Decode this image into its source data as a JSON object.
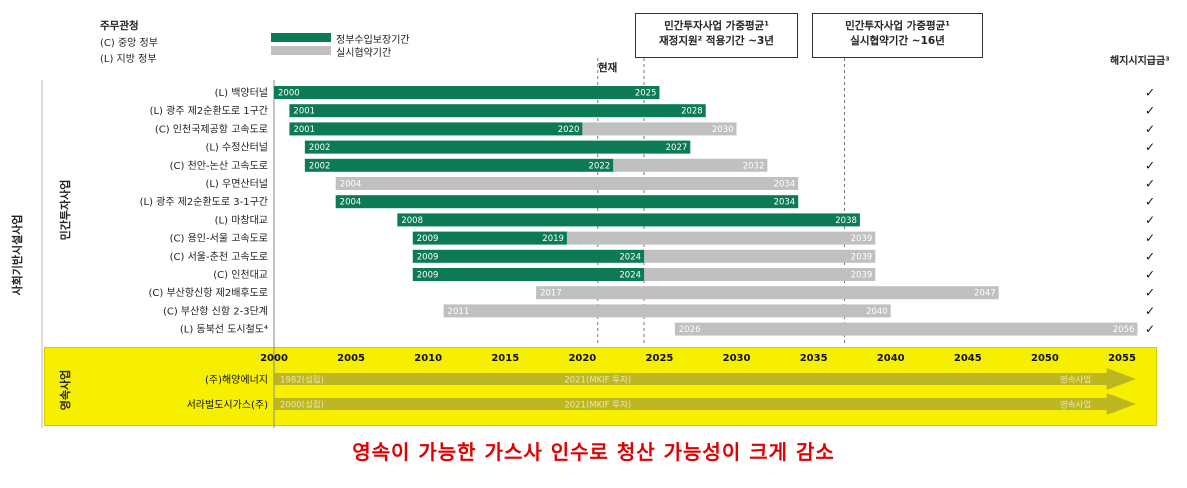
{
  "legend_ministry": {
    "title": "주무관청",
    "central": "(C) 중앙 정부",
    "local": "(L) 지방 정부"
  },
  "legend_series": {
    "guarantee": "정부수입보장기간",
    "actual": "실시협약기간",
    "guarantee_color": "#0b7a55",
    "actual_color": "#c0c0c0"
  },
  "callouts": {
    "box1_line1": "민간투자사업 가중평균¹",
    "box1_line2": "재정지원² 적용기간 ~3년",
    "box2_line1": "민간투자사업 가중평균¹",
    "box2_line2": "실시협약기간 ~16년",
    "now_label": "현재",
    "termination_label": "해지시지급금³"
  },
  "left_labels": {
    "outer": "사회기반시설사업",
    "private": "민간투자사업",
    "perpetual": "영속사업"
  },
  "subtitle": "영속이 가능한 가스사 인수로 청산 가능성이 크게 감소",
  "chart_data": {
    "type": "gantt",
    "x_range": [
      1989,
      2056
    ],
    "x_ticks": [
      2000,
      2005,
      2010,
      2015,
      2020,
      2025,
      2030,
      2035,
      2040,
      2045,
      2050,
      2055
    ],
    "reference_lines": [
      2021,
      2024,
      2037
    ],
    "projects": [
      {
        "name": "(L) 백양터널",
        "start": 2000,
        "guarantee_end": 2025,
        "end": 2025,
        "start_label": "2000",
        "mid_label": "",
        "end_label": "2025",
        "check": "✓"
      },
      {
        "name": "(L) 광주 제2순환도로 1구간",
        "start": 2001,
        "guarantee_end": 2028,
        "end": 2028,
        "start_label": "2001",
        "mid_label": "",
        "end_label": "2028",
        "check": "✓"
      },
      {
        "name": "(C) 인천국제공항 고속도로",
        "start": 2001,
        "guarantee_end": 2020,
        "end": 2030,
        "start_label": "2001",
        "mid_label": "2020",
        "end_label": "2030",
        "check": "✓"
      },
      {
        "name": "(L) 수정산터널",
        "start": 2002,
        "guarantee_end": 2027,
        "end": 2027,
        "start_label": "2002",
        "mid_label": "",
        "end_label": "2027",
        "check": "✓"
      },
      {
        "name": "(C) 천안-논산 고속도로",
        "start": 2002,
        "guarantee_end": 2022,
        "end": 2032,
        "start_label": "2002",
        "mid_label": "2022",
        "end_label": "2032",
        "check": "✓"
      },
      {
        "name": "(L) 우면산터널",
        "start": 2004,
        "guarantee_end": 2004,
        "end": 2034,
        "start_label": "2004",
        "mid_label": "",
        "end_label": "2034",
        "check": "✓"
      },
      {
        "name": "(L) 광주 제2순환도로 3-1구간",
        "start": 2004,
        "guarantee_end": 2034,
        "end": 2034,
        "start_label": "2004",
        "mid_label": "",
        "end_label": "2034",
        "check": "✓"
      },
      {
        "name": "(L) 마창대교",
        "start": 2008,
        "guarantee_end": 2038,
        "end": 2038,
        "start_label": "2008",
        "mid_label": "",
        "end_label": "2038",
        "check": "✓"
      },
      {
        "name": "(C) 용인-서울 고속도로",
        "start": 2009,
        "guarantee_end": 2019,
        "end": 2039,
        "start_label": "2009",
        "mid_label": "2019",
        "end_label": "2039",
        "check": "✓"
      },
      {
        "name": "(C) 서울-춘천 고속도로",
        "start": 2009,
        "guarantee_end": 2024,
        "end": 2039,
        "start_label": "2009",
        "mid_label": "2024",
        "end_label": "2039",
        "check": "✓"
      },
      {
        "name": "(C) 인천대교",
        "start": 2009,
        "guarantee_end": 2024,
        "end": 2039,
        "start_label": "2009",
        "mid_label": "2024",
        "end_label": "2039",
        "check": "✓"
      },
      {
        "name": "(C) 부산항신항 제2배후도로",
        "start": 2017,
        "guarantee_end": 2017,
        "end": 2047,
        "start_label": "2017",
        "mid_label": "",
        "end_label": "2047",
        "check": "✓"
      },
      {
        "name": "(C) 부산항 신항 2-3단계",
        "start": 2011,
        "guarantee_end": 2011,
        "end": 2040,
        "start_label": "2011",
        "mid_label": "",
        "end_label": "2040",
        "check": "✓"
      },
      {
        "name": "(L) 동북선 도시철도⁴",
        "start": 2026,
        "guarantee_end": 2026,
        "end": 2056,
        "start_label": "2026",
        "mid_label": "",
        "end_label": "2056",
        "check": "✓"
      }
    ],
    "perpetual": [
      {
        "name": "(주)해양에너지",
        "label_start": "1982(설립)",
        "label_mid": "2021(MKIF 투자)",
        "label_end": "영속사업"
      },
      {
        "name": "서라벌도시가스(주)",
        "label_start": "2000(설립)",
        "label_mid": "2021(MKIF 투자)",
        "label_end": "영속사업"
      }
    ]
  }
}
